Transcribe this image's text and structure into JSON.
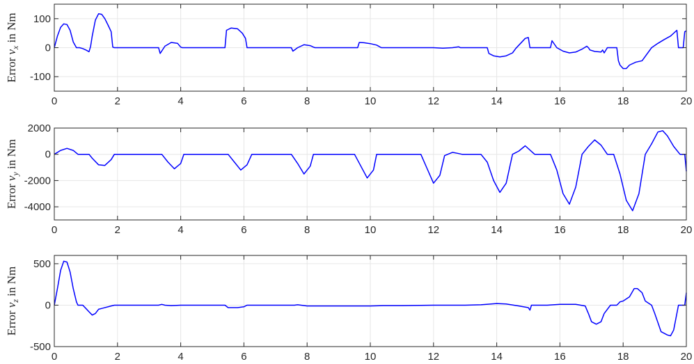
{
  "chart_data": [
    {
      "type": "line",
      "ylabel_prefix": "Error ",
      "ylabel_symbol": "ν",
      "ylabel_sub": "x",
      "ylabel_suffix": " in Nm",
      "xlim": [
        0,
        20
      ],
      "ylim": [
        -150,
        150
      ],
      "xticks": [
        0,
        2,
        4,
        6,
        8,
        10,
        12,
        14,
        16,
        18,
        20
      ],
      "xtick_labels": [
        "0",
        "2",
        "4",
        "6",
        "8",
        "10",
        "12",
        "14",
        "16",
        "18",
        "20"
      ],
      "yticks": [
        -100,
        0,
        100
      ],
      "ytick_labels": [
        "-100",
        "0",
        "100"
      ],
      "grid": true,
      "color": "#0000ff",
      "series": [
        {
          "x": [
            0,
            0.1,
            0.2,
            0.3,
            0.4,
            0.5,
            0.6,
            0.7,
            0.8,
            0.9,
            1.0,
            1.1,
            1.15,
            1.2,
            1.3,
            1.4,
            1.5,
            1.6,
            1.7,
            1.8,
            1.85,
            1.9,
            2.0,
            3.2,
            3.3,
            3.35,
            3.5,
            3.7,
            3.9,
            4.0,
            4.05,
            5.3,
            5.4,
            5.45,
            5.6,
            5.8,
            5.95,
            6.05,
            6.1,
            7.5,
            7.55,
            7.7,
            7.9,
            8.1,
            8.2,
            8.25,
            9.6,
            9.65,
            9.8,
            10.0,
            10.2,
            10.3,
            10.35,
            11.5,
            12.0,
            12.3,
            12.6,
            12.8,
            12.85,
            13.7,
            13.75,
            13.9,
            14.1,
            14.3,
            14.5,
            14.6,
            14.9,
            15.0,
            15.05,
            15.1,
            15.7,
            15.75,
            15.9,
            16.1,
            16.3,
            16.5,
            16.7,
            16.85,
            16.9,
            16.95,
            17.1,
            17.3,
            17.35,
            17.4,
            17.5,
            17.6,
            17.8,
            17.85,
            17.9,
            18.0,
            18.1,
            18.2,
            18.4,
            18.6,
            18.9,
            19.1,
            19.3,
            19.5,
            19.7,
            19.75,
            19.8,
            19.9,
            19.95,
            20.0
          ],
          "y": [
            0,
            40,
            70,
            82,
            80,
            60,
            20,
            0,
            0,
            -3,
            -8,
            -14,
            5,
            40,
            95,
            117,
            115,
            100,
            78,
            55,
            2,
            0,
            0,
            0,
            0,
            -20,
            5,
            18,
            15,
            2,
            0,
            0,
            0,
            60,
            68,
            65,
            50,
            32,
            0,
            0,
            -12,
            0,
            10,
            7,
            2,
            0,
            0,
            18,
            17,
            14,
            9,
            3,
            0,
            0,
            0,
            -2,
            0,
            3,
            0,
            0,
            -20,
            -28,
            -32,
            -28,
            -18,
            -3,
            32,
            35,
            0,
            0,
            0,
            24,
            0,
            -12,
            -18,
            -15,
            -5,
            5,
            0,
            -8,
            -13,
            -15,
            -8,
            -18,
            0,
            0,
            0,
            -45,
            -60,
            -72,
            -72,
            -60,
            -50,
            -45,
            0,
            15,
            28,
            40,
            60,
            0,
            0,
            0,
            55,
            58
          ]
        }
      ]
    },
    {
      "type": "line",
      "ylabel_prefix": "Error ",
      "ylabel_symbol": "ν",
      "ylabel_sub": "y",
      "ylabel_suffix": " in Nm",
      "xlim": [
        0,
        20
      ],
      "ylim": [
        -5000,
        2000
      ],
      "xticks": [
        0,
        2,
        4,
        6,
        8,
        10,
        12,
        14,
        16,
        18,
        20
      ],
      "xtick_labels": [
        "0",
        "2",
        "4",
        "6",
        "8",
        "10",
        "12",
        "14",
        "16",
        "18",
        "20"
      ],
      "yticks": [
        -4000,
        -2000,
        0,
        2000
      ],
      "ytick_labels": [
        "-4000",
        "-2000",
        "0",
        "2000"
      ],
      "grid": true,
      "color": "#0000ff",
      "series": [
        {
          "x": [
            0,
            0.2,
            0.4,
            0.6,
            0.75,
            1.1,
            1.2,
            1.4,
            1.6,
            1.8,
            1.9,
            3.4,
            3.6,
            3.8,
            4.0,
            4.1,
            5.5,
            5.7,
            5.9,
            6.1,
            6.25,
            7.5,
            7.7,
            7.9,
            8.1,
            8.2,
            9.5,
            9.7,
            9.9,
            10.1,
            10.2,
            11.6,
            11.8,
            12.0,
            12.2,
            12.35,
            12.6,
            12.75,
            12.9,
            13.5,
            13.7,
            13.9,
            14.1,
            14.3,
            14.5,
            14.7,
            14.9,
            15.2,
            15.7,
            15.9,
            16.1,
            16.3,
            16.5,
            16.7,
            16.9,
            17.1,
            17.3,
            17.5,
            17.7,
            17.9,
            18.1,
            18.3,
            18.5,
            18.7,
            18.9,
            19.1,
            19.25,
            19.4,
            19.6,
            19.8,
            19.95,
            20.0
          ],
          "y": [
            0,
            300,
            450,
            300,
            0,
            0,
            -300,
            -800,
            -850,
            -400,
            0,
            0,
            -600,
            -1100,
            -700,
            0,
            0,
            -600,
            -1200,
            -800,
            0,
            0,
            -700,
            -1500,
            -900,
            0,
            0,
            -900,
            -1800,
            -1200,
            0,
            0,
            -1100,
            -2200,
            -1600,
            -100,
            150,
            80,
            0,
            0,
            -600,
            -2000,
            -2900,
            -2200,
            0,
            250,
            650,
            0,
            0,
            -1200,
            -3000,
            -3800,
            -2500,
            0,
            600,
            1100,
            700,
            0,
            0,
            -1500,
            -3500,
            -4300,
            -3000,
            0,
            800,
            1700,
            1800,
            1400,
            600,
            0,
            0,
            -1300
          ]
        }
      ]
    },
    {
      "type": "line",
      "ylabel_prefix": "Error ",
      "ylabel_symbol": "ν",
      "ylabel_sub": "z",
      "ylabel_suffix": " in Nm",
      "xlim": [
        0,
        20
      ],
      "ylim": [
        -500,
        600
      ],
      "xticks": [
        0,
        2,
        4,
        6,
        8,
        10,
        12,
        14,
        16,
        18,
        20
      ],
      "xtick_labels": [
        "0",
        "2",
        "4",
        "6",
        "8",
        "10",
        "12",
        "14",
        "16",
        "18",
        "20"
      ],
      "yticks": [
        -500,
        0,
        500
      ],
      "ytick_labels": [
        "-500",
        "0",
        "500"
      ],
      "grid": true,
      "color": "#0000ff",
      "series": [
        {
          "x": [
            0,
            0.1,
            0.2,
            0.3,
            0.4,
            0.5,
            0.6,
            0.7,
            0.75,
            0.9,
            1.0,
            1.1,
            1.2,
            1.3,
            1.4,
            1.5,
            1.8,
            1.9,
            3.3,
            3.4,
            3.5,
            3.7,
            4.0,
            5.4,
            5.5,
            5.8,
            6.0,
            6.1,
            7.6,
            7.7,
            8.0,
            8.2,
            9.6,
            10.0,
            10.4,
            11.0,
            12.0,
            13.0,
            13.5,
            14.0,
            14.3,
            14.7,
            15.0,
            15.05,
            15.1,
            15.6,
            16.0,
            16.5,
            16.8,
            16.9,
            17.0,
            17.15,
            17.3,
            17.4,
            17.6,
            17.8,
            17.9,
            18.0,
            18.2,
            18.35,
            18.45,
            18.6,
            18.7,
            18.9,
            19.0,
            19.2,
            19.4,
            19.5,
            19.6,
            19.75,
            19.95,
            20.0
          ],
          "y": [
            0,
            200,
            420,
            530,
            520,
            400,
            200,
            40,
            0,
            0,
            -40,
            -80,
            -120,
            -100,
            -50,
            -40,
            -10,
            0,
            0,
            10,
            0,
            -5,
            0,
            0,
            -30,
            -30,
            -20,
            0,
            0,
            5,
            -10,
            -10,
            -10,
            -10,
            -5,
            -5,
            0,
            0,
            5,
            20,
            15,
            -10,
            -30,
            -60,
            0,
            0,
            10,
            10,
            -10,
            -100,
            -200,
            -230,
            -200,
            -100,
            0,
            0,
            40,
            50,
            100,
            200,
            200,
            150,
            50,
            0,
            -100,
            -320,
            -360,
            -370,
            -300,
            0,
            0,
            150
          ]
        }
      ]
    }
  ]
}
